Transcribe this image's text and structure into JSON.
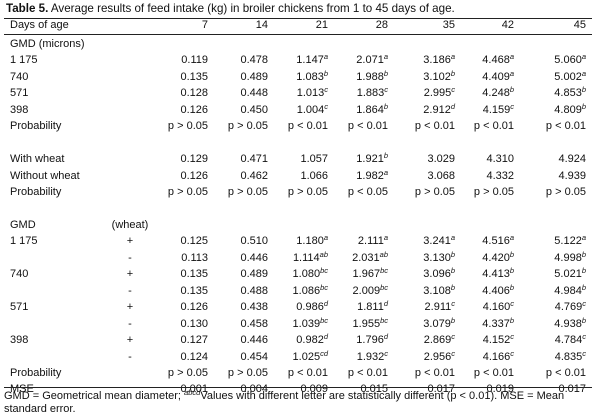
{
  "caption": {
    "label": "Table 5.",
    "text": " Average results of feed intake (kg) in broiler chickens from 1 to 45 days of age."
  },
  "header": {
    "label": "Days of age",
    "columns": [
      "7",
      "14",
      "21",
      "28",
      "35",
      "42",
      "45"
    ]
  },
  "rows": [
    {
      "label": "GMD (microns)",
      "sub": "",
      "cells": []
    },
    {
      "label": "1 175",
      "sub": "",
      "cells": [
        [
          "0.119",
          ""
        ],
        [
          "0.478",
          ""
        ],
        [
          "1.147",
          "a"
        ],
        [
          "2.071",
          "a"
        ],
        [
          "3.186",
          "a"
        ],
        [
          "4.468",
          "a"
        ],
        [
          "5.060",
          "a"
        ]
      ]
    },
    {
      "label": "740",
      "sub": "",
      "cells": [
        [
          "0.135",
          ""
        ],
        [
          "0.489",
          ""
        ],
        [
          "1.083",
          "b"
        ],
        [
          "1.988",
          "b"
        ],
        [
          "3.102",
          "b"
        ],
        [
          "4.409",
          "a"
        ],
        [
          "5.002",
          "a"
        ]
      ]
    },
    {
      "label": "571",
      "sub": "",
      "cells": [
        [
          "0.128",
          ""
        ],
        [
          "0.448",
          ""
        ],
        [
          "1.013",
          "c"
        ],
        [
          "1.883",
          "c"
        ],
        [
          "2.995",
          "c"
        ],
        [
          "4.248",
          "b"
        ],
        [
          "4.853",
          "b"
        ]
      ]
    },
    {
      "label": "398",
      "sub": "",
      "cells": [
        [
          "0.126",
          ""
        ],
        [
          "0.450",
          ""
        ],
        [
          "1.004",
          "c"
        ],
        [
          "1.864",
          "b"
        ],
        [
          "2.912",
          "d"
        ],
        [
          "4.159",
          "c"
        ],
        [
          "4.809",
          "b"
        ]
      ]
    },
    {
      "label": "Probability",
      "sub": "",
      "cells": [
        [
          "p > 0.05",
          ""
        ],
        [
          "p > 0.05",
          ""
        ],
        [
          "p < 0.01",
          ""
        ],
        [
          "p < 0.01",
          ""
        ],
        [
          "p < 0.01",
          ""
        ],
        [
          "p < 0.01",
          ""
        ],
        [
          "p < 0.01",
          ""
        ]
      ]
    },
    {
      "label": "",
      "sub": "",
      "cells": []
    },
    {
      "label": "With wheat",
      "sub": "",
      "cells": [
        [
          "0.129",
          ""
        ],
        [
          "0.471",
          ""
        ],
        [
          "1.057",
          ""
        ],
        [
          "1.921",
          "b"
        ],
        [
          "3.029",
          ""
        ],
        [
          "4.310",
          ""
        ],
        [
          "4.924",
          ""
        ]
      ]
    },
    {
      "label": "Without wheat",
      "sub": "",
      "cells": [
        [
          "0.126",
          ""
        ],
        [
          "0.462",
          ""
        ],
        [
          "1.066",
          ""
        ],
        [
          "1.982",
          "a"
        ],
        [
          "3.068",
          ""
        ],
        [
          "4.332",
          ""
        ],
        [
          "4.939",
          ""
        ]
      ]
    },
    {
      "label": "Probability",
      "sub": "",
      "cells": [
        [
          "p > 0.05",
          ""
        ],
        [
          "p > 0.05",
          ""
        ],
        [
          "p > 0.05",
          ""
        ],
        [
          "p < 0.05",
          ""
        ],
        [
          "p > 0.05",
          ""
        ],
        [
          "p > 0.05",
          ""
        ],
        [
          "p > 0.05",
          ""
        ]
      ]
    },
    {
      "label": "",
      "sub": "",
      "cells": []
    },
    {
      "label": "GMD",
      "sub": "(wheat)",
      "cells": []
    },
    {
      "label": "1 175",
      "sub": "+",
      "cells": [
        [
          "0.125",
          ""
        ],
        [
          "0.510",
          ""
        ],
        [
          "1.180",
          "a"
        ],
        [
          "2.111",
          "a"
        ],
        [
          "3.241",
          "a"
        ],
        [
          "4.516",
          "a"
        ],
        [
          "5.122",
          "a"
        ]
      ]
    },
    {
      "label": "",
      "sub": "-",
      "cells": [
        [
          "0.113",
          ""
        ],
        [
          "0.446",
          ""
        ],
        [
          "1.114",
          "ab"
        ],
        [
          "2.031",
          "ab"
        ],
        [
          "3.130",
          "b"
        ],
        [
          "4.420",
          "b"
        ],
        [
          "4.998",
          "b"
        ]
      ]
    },
    {
      "label": "740",
      "sub": "+",
      "cells": [
        [
          "0.135",
          ""
        ],
        [
          "0.489",
          ""
        ],
        [
          "1.080",
          "bc"
        ],
        [
          "1.967",
          "bc"
        ],
        [
          "3.096",
          "b"
        ],
        [
          "4.413",
          "b"
        ],
        [
          "5.021",
          "b"
        ]
      ]
    },
    {
      "label": "",
      "sub": "-",
      "cells": [
        [
          "0.135",
          ""
        ],
        [
          "0.488",
          ""
        ],
        [
          "1.086",
          "bc"
        ],
        [
          "2.009",
          "bc"
        ],
        [
          "3.108",
          "b"
        ],
        [
          "4.406",
          "b"
        ],
        [
          "4.984",
          "b"
        ]
      ]
    },
    {
      "label": "571",
      "sub": "+",
      "cells": [
        [
          "0.126",
          ""
        ],
        [
          "0.438",
          ""
        ],
        [
          "0.986",
          "d"
        ],
        [
          "1.811",
          "d"
        ],
        [
          "2.911",
          "c"
        ],
        [
          "4.160",
          "c"
        ],
        [
          "4.769",
          "c"
        ]
      ]
    },
    {
      "label": "",
      "sub": "-",
      "cells": [
        [
          "0.130",
          ""
        ],
        [
          "0.458",
          ""
        ],
        [
          "1.039",
          "bc"
        ],
        [
          "1.955",
          "bc"
        ],
        [
          "3.079",
          "b"
        ],
        [
          "4.337",
          "b"
        ],
        [
          "4.938",
          "b"
        ]
      ]
    },
    {
      "label": "398",
      "sub": "+",
      "cells": [
        [
          "0.127",
          ""
        ],
        [
          "0.446",
          ""
        ],
        [
          "0.982",
          "d"
        ],
        [
          "1.796",
          "d"
        ],
        [
          "2.869",
          "c"
        ],
        [
          "4.152",
          "c"
        ],
        [
          "4.784",
          "c"
        ]
      ]
    },
    {
      "label": "",
      "sub": "-",
      "cells": [
        [
          "0.124",
          ""
        ],
        [
          "0.454",
          ""
        ],
        [
          "1.025",
          "cd"
        ],
        [
          "1.932",
          "c"
        ],
        [
          "2.956",
          "c"
        ],
        [
          "4.166",
          "c"
        ],
        [
          "4.835",
          "c"
        ]
      ]
    },
    {
      "label": "Probability",
      "sub": "",
      "cells": [
        [
          "p > 0.05",
          ""
        ],
        [
          "p > 0.05",
          ""
        ],
        [
          "p < 0.01",
          ""
        ],
        [
          "p < 0.01",
          ""
        ],
        [
          "p < 0.01",
          ""
        ],
        [
          "p < 0.01",
          ""
        ],
        [
          "p < 0.01",
          ""
        ]
      ]
    },
    {
      "label": "MSE",
      "sub": "",
      "cells": [
        [
          "0.001",
          ""
        ],
        [
          "0.004",
          ""
        ],
        [
          "0.009",
          ""
        ],
        [
          "0.015",
          ""
        ],
        [
          "0.017",
          ""
        ],
        [
          "0.019",
          ""
        ],
        [
          "0.017",
          ""
        ]
      ]
    }
  ],
  "footnote": {
    "before": "GMD = Geometrical mean diameter; ",
    "letters": "abcd",
    "after": "Values with different letter are statistically different (p < 0.01). MSE = Mean standard error."
  }
}
